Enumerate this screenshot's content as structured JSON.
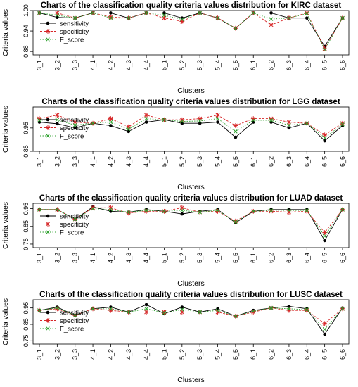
{
  "style": {
    "colors": {
      "sensitivity": "#000000",
      "specificity": "#d62728",
      "F_score": "#2ca02c"
    }
  },
  "chart_data": [
    {
      "type": "line",
      "title": "Charts of the classification quality criteria values distribution for KIRC dataset",
      "xlabel": "Clusters",
      "ylabel": "Criteria values",
      "categories": [
        "3_1",
        "3_2",
        "3_3",
        "4_1",
        "4_2",
        "4_3",
        "4_4",
        "5_1",
        "5_2",
        "5_3",
        "5_4",
        "5_5",
        "6_1",
        "6_2",
        "6_3",
        "6_4",
        "6_5",
        "6_6"
      ],
      "ylim": [
        0.87,
        1.0
      ],
      "yticks": [
        0.88,
        0.94,
        1.0
      ],
      "ytick_labels": [
        "0.88",
        "0.94",
        "1.00"
      ],
      "legend_position": "center-left",
      "series": [
        {
          "name": "sensitivity",
          "values": [
            0.993,
            0.98,
            0.978,
            0.993,
            0.993,
            0.978,
            0.993,
            0.993,
            0.978,
            0.993,
            0.978,
            0.948,
            0.993,
            0.993,
            0.978,
            0.978,
            0.895,
            0.978
          ]
        },
        {
          "name": "specificity",
          "values": [
            0.993,
            0.993,
            0.978,
            0.993,
            0.981,
            0.978,
            0.993,
            0.978,
            0.968,
            0.993,
            0.978,
            0.948,
            0.993,
            0.958,
            0.978,
            0.993,
            0.888,
            0.978
          ]
        },
        {
          "name": "F_score",
          "values": [
            0.993,
            0.986,
            0.978,
            0.993,
            0.978,
            0.978,
            0.993,
            0.986,
            0.974,
            0.993,
            0.978,
            0.948,
            0.993,
            0.975,
            0.978,
            0.991,
            0.886,
            0.978
          ]
        }
      ]
    },
    {
      "type": "line",
      "title": "Charts of the classification quality criteria values distribution for LGG dataset",
      "xlabel": "Clusters",
      "ylabel": "Criteria values",
      "categories": [
        "3_1",
        "3_2",
        "3_3",
        "4_1",
        "4_2",
        "4_3",
        "4_4",
        "5_1",
        "5_2",
        "5_3",
        "5_4",
        "5_5",
        "6_1",
        "6_2",
        "6_3",
        "6_4",
        "6_5",
        "6_6"
      ],
      "ylim": [
        0.85,
        1.04
      ],
      "yticks": [
        0.85,
        0.95
      ],
      "ytick_labels": [
        "0.85",
        "0.95"
      ],
      "legend_position": "center-left",
      "series": [
        {
          "name": "sensitivity",
          "values": [
            0.975,
            0.968,
            0.95,
            0.97,
            0.96,
            0.935,
            0.975,
            0.985,
            0.97,
            0.97,
            0.975,
            0.91,
            0.975,
            0.975,
            0.95,
            0.97,
            0.895,
            0.96
          ]
        },
        {
          "name": "specificity",
          "values": [
            0.99,
            1.005,
            0.975,
            0.97,
            0.99,
            0.955,
            1.005,
            0.985,
            0.985,
            0.99,
            1.005,
            0.96,
            0.99,
            0.99,
            0.975,
            0.97,
            0.92,
            0.97
          ]
        },
        {
          "name": "F_score",
          "values": [
            0.983,
            0.985,
            0.962,
            0.97,
            0.975,
            0.945,
            0.99,
            0.985,
            0.978,
            0.98,
            0.99,
            0.935,
            0.983,
            0.983,
            0.962,
            0.97,
            0.908,
            0.965
          ]
        }
      ]
    },
    {
      "type": "line",
      "title": "Charts of the classification quality criteria values distribution for LUAD dataset",
      "xlabel": "Clusters",
      "ylabel": "Criteria values",
      "categories": [
        "3_1",
        "3_2",
        "3_3",
        "4_1",
        "4_2",
        "4_3",
        "4_4",
        "5_1",
        "5_2",
        "5_3",
        "5_4",
        "5_5",
        "6_1",
        "6_2",
        "6_3",
        "6_4",
        "6_5",
        "6_6"
      ],
      "ylim": [
        0.73,
        0.98
      ],
      "yticks": [
        0.75,
        0.85,
        0.95
      ],
      "ytick_labels": [
        "0.75",
        "0.85",
        "0.95"
      ],
      "legend_position": "center-left",
      "series": [
        {
          "name": "sensitivity",
          "values": [
            0.945,
            0.945,
            0.89,
            0.96,
            0.935,
            0.93,
            0.945,
            0.935,
            0.92,
            0.935,
            0.945,
            0.87,
            0.935,
            0.945,
            0.945,
            0.945,
            0.77,
            0.945
          ]
        },
        {
          "name": "specificity",
          "values": [
            0.945,
            0.945,
            0.89,
            0.955,
            0.955,
            0.925,
            0.935,
            0.935,
            0.955,
            0.93,
            0.935,
            0.88,
            0.935,
            0.935,
            0.93,
            0.935,
            0.815,
            0.945
          ]
        },
        {
          "name": "F_score",
          "values": [
            0.945,
            0.945,
            0.89,
            0.95,
            0.945,
            0.93,
            0.94,
            0.935,
            0.94,
            0.93,
            0.94,
            0.875,
            0.935,
            0.94,
            0.94,
            0.94,
            0.795,
            0.945
          ]
        }
      ]
    },
    {
      "type": "line",
      "title": "Charts of the classification quality criteria values distribution for LUSC dataset",
      "xlabel": "Clusters",
      "ylabel": "Criteria values",
      "categories": [
        "3_1",
        "3_2",
        "3_3",
        "4_1",
        "4_2",
        "4_3",
        "4_4",
        "5_1",
        "5_2",
        "5_3",
        "5_4",
        "5_5",
        "6_1",
        "6_2",
        "6_3",
        "6_4",
        "6_5",
        "6_6"
      ],
      "ylim": [
        0.73,
        1.0
      ],
      "yticks": [
        0.75,
        0.85,
        0.95
      ],
      "ytick_labels": [
        "0.75",
        "0.85",
        "0.95"
      ],
      "legend_position": "center-left",
      "series": [
        {
          "name": "sensitivity",
          "values": [
            0.935,
            0.955,
            0.905,
            0.945,
            0.955,
            0.925,
            0.97,
            0.915,
            0.955,
            0.925,
            0.945,
            0.9,
            0.935,
            0.95,
            0.96,
            0.945,
            0.79,
            0.95
          ]
        },
        {
          "name": "specificity",
          "values": [
            0.935,
            0.945,
            0.905,
            0.945,
            0.935,
            0.925,
            0.925,
            0.925,
            0.925,
            0.925,
            0.925,
            0.9,
            0.925,
            0.95,
            0.935,
            0.935,
            0.855,
            0.945
          ]
        },
        {
          "name": "F_score",
          "values": [
            0.935,
            0.95,
            0.905,
            0.945,
            0.945,
            0.925,
            0.945,
            0.92,
            0.94,
            0.925,
            0.935,
            0.9,
            0.93,
            0.95,
            0.945,
            0.94,
            0.82,
            0.945
          ]
        }
      ]
    }
  ]
}
